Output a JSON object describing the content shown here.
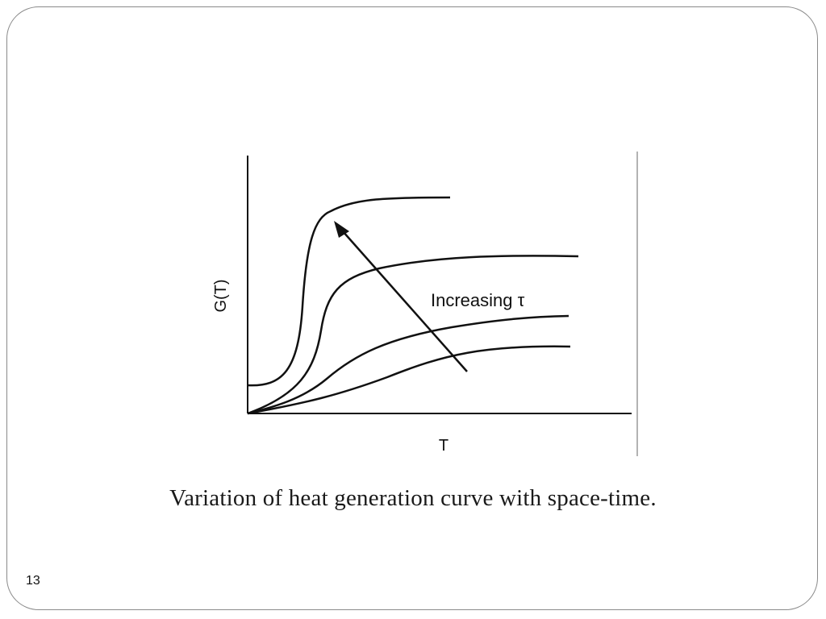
{
  "slide": {
    "caption": "Variation of heat generation curve with space-time.",
    "page_number": "13"
  },
  "figure": {
    "y_axis_label": "G(T)",
    "x_axis_label": "T",
    "annotation": "Increasing τ",
    "curve_count": 4,
    "colors": {
      "line": "#111111",
      "frame": "#8a8a8a"
    }
  }
}
